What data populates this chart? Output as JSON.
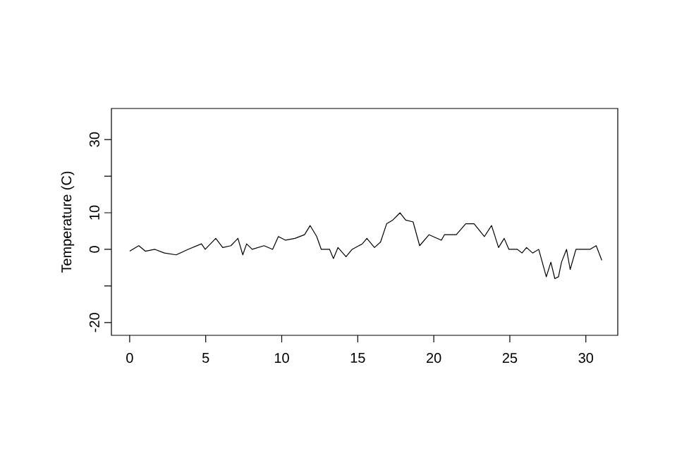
{
  "chart_data": {
    "type": "line",
    "ylabel": "Temperature (C)",
    "x": [
      0,
      0.6,
      1.03,
      1.66,
      2.28,
      3.06,
      3.84,
      4.72,
      4.97,
      5.66,
      6.12,
      6.66,
      7.12,
      7.44,
      7.69,
      8.06,
      8.84,
      9.4,
      9.78,
      10.25,
      10.87,
      11.5,
      11.87,
      12.3,
      12.6,
      13.15,
      13.4,
      13.7,
      14.23,
      14.63,
      15.3,
      15.6,
      16.1,
      16.5,
      16.9,
      17.3,
      17.78,
      18.15,
      18.64,
      19.07,
      19.69,
      20.5,
      20.7,
      21.48,
      22.1,
      22.65,
      23.33,
      23.8,
      24.26,
      24.63,
      24.94,
      25.5,
      25.8,
      26.1,
      26.5,
      26.9,
      27.4,
      27.7,
      27.96,
      28.2,
      28.4,
      28.73,
      28.97,
      29.35,
      29.8,
      30.27,
      30.68,
      31.05
    ],
    "series": [
      {
        "color": "#000000",
        "values": [
          -0.5,
          1,
          -0.5,
          0,
          -1,
          -1.5,
          0,
          1.5,
          0,
          3,
          0.5,
          1,
          3,
          -1.5,
          1.5,
          0,
          1,
          0,
          3.5,
          2.5,
          3,
          4,
          6.5,
          3.5,
          0,
          0,
          -2.5,
          0.5,
          -2,
          0,
          1.5,
          3,
          0.5,
          2,
          7,
          8,
          10,
          8,
          7.5,
          1,
          4,
          2.5,
          4,
          4,
          7,
          7,
          3.5,
          6.5,
          0.5,
          3,
          0,
          0,
          -1,
          0.5,
          -1,
          0,
          -7.5,
          -3.5,
          -8,
          -7.5,
          -3.5,
          0,
          -5.5,
          0,
          0,
          0,
          1,
          -3
        ]
      }
    ],
    "xlim": [
      -1.2,
      32.1
    ],
    "ylim": [
      -23.5,
      38.5
    ],
    "xticks": [
      0,
      5,
      10,
      15,
      20,
      25,
      30
    ],
    "yticks": [
      -20,
      {
        "value": -10,
        "label": null
      },
      0,
      10,
      {
        "value": 20,
        "label": null
      },
      30
    ],
    "marker": "none",
    "line_style": "solid"
  }
}
